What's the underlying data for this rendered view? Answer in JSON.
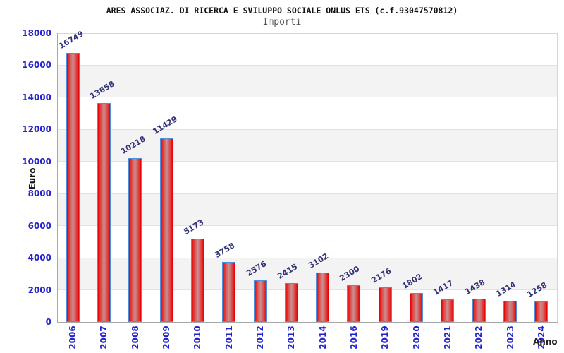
{
  "header": {
    "title": "ARES ASSOCIAZ. DI RICERCA E SVILUPPO SOCIALE ONLUS ETS (c.f.93047570812)",
    "subtitle": "Importi"
  },
  "chart_data": {
    "type": "bar",
    "title": "ARES ASSOCIAZ. DI RICERCA E SVILUPPO SOCIALE ONLUS ETS (c.f.93047570812)",
    "subtitle": "Importi",
    "categories": [
      "2006",
      "2007",
      "2008",
      "2009",
      "2010",
      "2011",
      "2012",
      "2013",
      "2014",
      "2016",
      "2019",
      "2020",
      "2021",
      "2022",
      "2023",
      "2024"
    ],
    "values": [
      16749,
      13658,
      10218,
      11429,
      5173,
      3758,
      2576,
      2415,
      3102,
      2300,
      2176,
      1802,
      1417,
      1438,
      1314,
      1258
    ],
    "value_labels": [
      "16749",
      "13658",
      "10218",
      "11429",
      "5173",
      "3758",
      "2576",
      "2415",
      "3102",
      "2300",
      "2176",
      "1802",
      "1417",
      "1438",
      "1314",
      "1258"
    ],
    "xlabel": "Anno",
    "ylabel": "Euro",
    "ylim": [
      0,
      18000
    ],
    "yticks": [
      "0",
      "2000",
      "4000",
      "6000",
      "8000",
      "10000",
      "12000",
      "14000",
      "16000",
      "18000"
    ],
    "grid": true,
    "legend_position": "none",
    "style": {
      "bar_fill_edge": "#e10000",
      "bar_fill_center": "#c79292",
      "bar_border": "#4d8fdb",
      "tick_label_color": "#2222cc",
      "value_label_color": "#333377",
      "band_gray": "#f3f3f3",
      "grid_color": "#e2e2e2",
      "axis_color": "#a8a8a8",
      "title_color": "#111111",
      "subtitle_color": "#585858"
    }
  }
}
